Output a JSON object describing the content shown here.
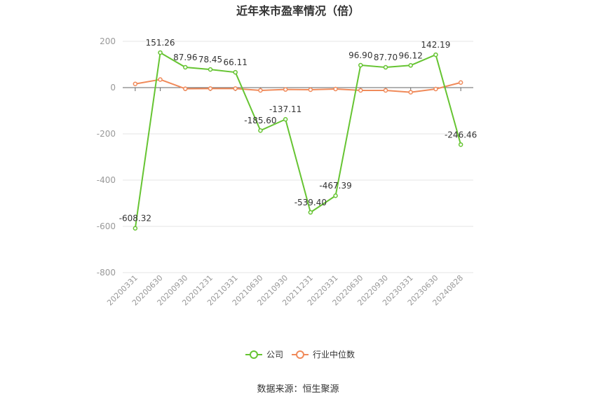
{
  "chart_data": {
    "type": "line",
    "title": "近年来市盈率情况（倍）",
    "categories": [
      "20200331",
      "20200630",
      "20200930",
      "20201231",
      "20210331",
      "20210630",
      "20210930",
      "20211231",
      "20220331",
      "20220630",
      "20220930",
      "20230331",
      "20230630",
      "20240828"
    ],
    "series": [
      {
        "name": "公司",
        "color": "#66c432",
        "values": [
          -608.32,
          151.26,
          87.96,
          78.45,
          66.11,
          -185.6,
          -137.11,
          -539.4,
          -467.39,
          96.9,
          87.7,
          96.12,
          142.19,
          -246.46
        ],
        "labels": [
          "-608.32",
          "151.26",
          "87.96",
          "78.45",
          "66.11",
          "-185.60",
          "-137.11",
          "-539.40",
          "-467.39",
          "96.90",
          "87.70",
          "96.12",
          "142.19",
          "-246.46"
        ]
      },
      {
        "name": "行业中位数",
        "color": "#f08a5a",
        "values": [
          16,
          35,
          -5,
          -4,
          -4,
          -12,
          -8,
          -9,
          -6,
          -12,
          -12,
          -20,
          -6,
          22
        ]
      }
    ],
    "ylim": [
      -800,
      200
    ],
    "yticks": [
      200,
      0,
      -200,
      -400,
      -600,
      -800
    ],
    "grid": true,
    "legend": "bottom-center"
  },
  "source": "数据来源：恒生聚源"
}
